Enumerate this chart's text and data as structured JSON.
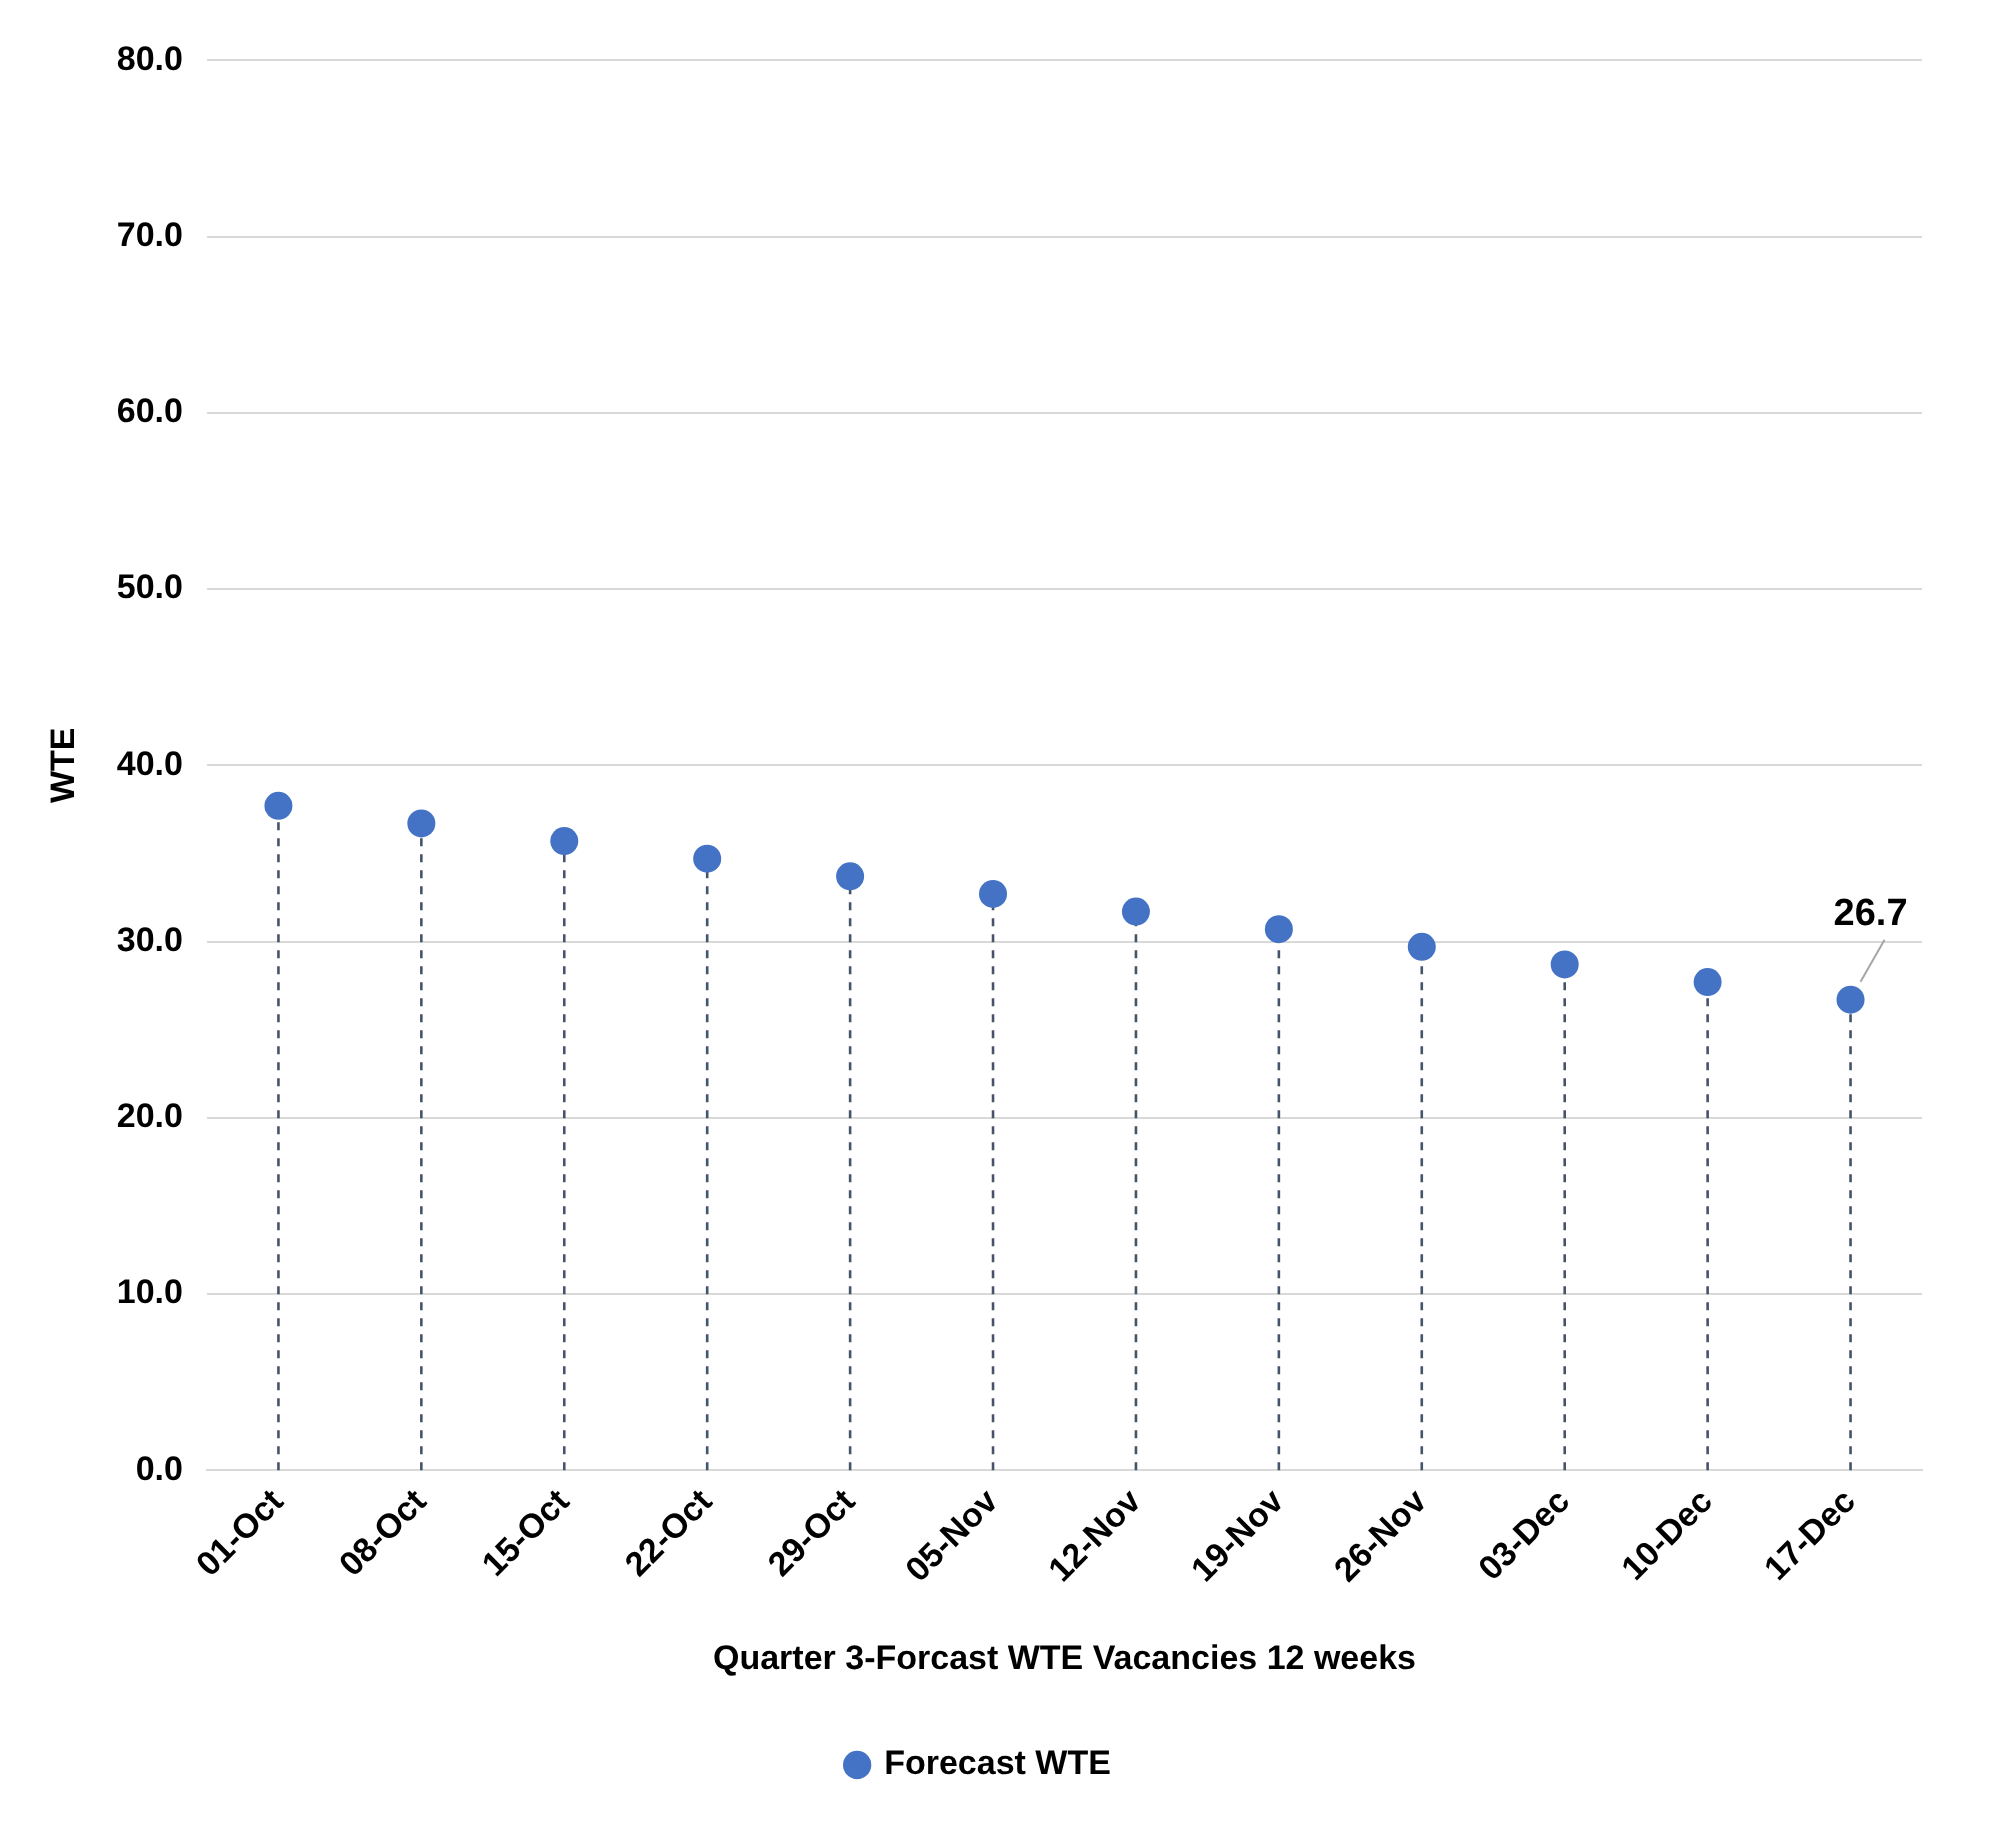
{
  "chart_data": {
    "type": "lollipop",
    "xlabel": "Quarter 3-Forcast WTE Vacancies 12 weeks",
    "ylabel": "WTE",
    "categories": [
      "01-Oct",
      "08-Oct",
      "15-Oct",
      "22-Oct",
      "29-Oct",
      "05-Nov",
      "12-Nov",
      "19-Nov",
      "26-Nov",
      "03-Dec",
      "10-Dec",
      "17-Dec"
    ],
    "series": [
      {
        "name": "Forecast WTE",
        "color": "#4472c4",
        "values": [
          37.7,
          36.7,
          35.7,
          34.7,
          33.7,
          32.7,
          31.7,
          30.7,
          29.7,
          28.7,
          27.7,
          26.7
        ],
        "value_labels": [
          null,
          null,
          null,
          null,
          null,
          null,
          null,
          null,
          null,
          null,
          null,
          "26.7"
        ]
      }
    ],
    "ylim": [
      0,
      80
    ],
    "yticks": [
      {
        "value": 0,
        "label": "0.0"
      },
      {
        "value": 10,
        "label": "10.0"
      },
      {
        "value": 20,
        "label": "20.0"
      },
      {
        "value": 30,
        "label": "30.0"
      },
      {
        "value": 40,
        "label": "40.0"
      },
      {
        "value": 50,
        "label": "50.0"
      },
      {
        "value": 60,
        "label": "60.0"
      },
      {
        "value": 70,
        "label": "70.0"
      },
      {
        "value": 80,
        "label": "80.0"
      }
    ],
    "grid": "y",
    "legend": "bottom",
    "marker": "circle",
    "line_style": "dashed"
  }
}
